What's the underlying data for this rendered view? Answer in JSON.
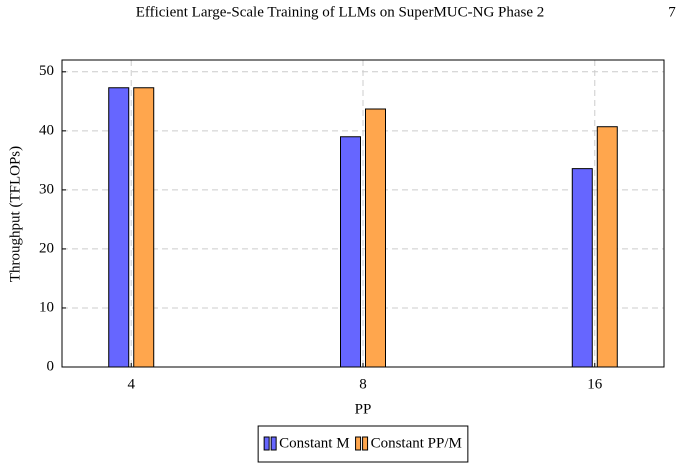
{
  "header": {
    "title": "Efficient Large-Scale Training of LLMs on SuperMUC-NG Phase 2",
    "page": "7"
  },
  "chart_data": {
    "type": "bar",
    "xlabel": "PP",
    "ylabel": "Throughput (TFLOPs)",
    "categories": [
      "4",
      "8",
      "16"
    ],
    "series": [
      {
        "name": "Constant M",
        "color": "#6666ff",
        "values": [
          47.3,
          39.0,
          33.6
        ]
      },
      {
        "name": "Constant PP/M",
        "color": "#ffa64d",
        "values": [
          47.3,
          43.7,
          40.7
        ]
      }
    ],
    "ylim": [
      0,
      52
    ],
    "yticks": [
      0,
      10,
      20,
      30,
      40,
      50
    ],
    "grid": true,
    "legend": "bottom"
  }
}
